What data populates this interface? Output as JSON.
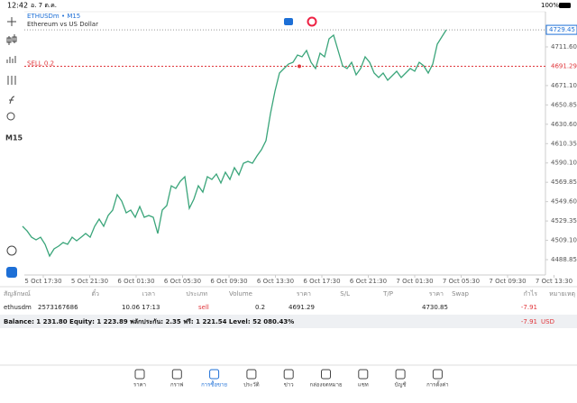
{
  "status_bar": {
    "time": "12:42",
    "date": "อ. 7 ต.ค.",
    "battery": "100%"
  },
  "side_toolbar": {
    "timeframe": "M15"
  },
  "chart_data": {
    "type": "line",
    "title": "ETHUSDm • M15",
    "subtitle": "Ethereum vs US Dollar",
    "color": "#3aa57a",
    "values": [
      4523.8,
      4519.0,
      4512.4,
      4509.6,
      4512.4,
      4504.9,
      4492.6,
      4500.2,
      4503.0,
      4506.8,
      4504.9,
      4512.4,
      4508.6,
      4512.4,
      4516.2,
      4512.4,
      4523.8,
      4531.3,
      4523.8,
      4535.1,
      4540.8,
      4556.8,
      4550.2,
      4537.9,
      4540.8,
      4533.2,
      4544.5,
      4533.2,
      4535.1,
      4533.2,
      4516.2,
      4540.8,
      4545.5,
      4566.2,
      4563.4,
      4571.0,
      4575.7,
      4542.6,
      4552.1,
      4566.2,
      4559.6,
      4575.7,
      4572.9,
      4578.5,
      4569.1,
      4580.4,
      4572.9,
      4585.1,
      4577.6,
      4589.8,
      4591.7,
      4589.8,
      4597.4,
      4604.0,
      4613.4,
      4641.8,
      4665.3,
      4684.2,
      4688.9,
      4693.7,
      4695.5,
      4703.1,
      4701.2,
      4707.8,
      4695.5,
      4688.9,
      4705.0,
      4701.2,
      4720.1,
      4723.9,
      4707.8,
      4691.8,
      4688.9,
      4695.5,
      4682.3,
      4688.9,
      4701.2,
      4695.5,
      4684.2,
      4679.5,
      4684.2,
      4676.7,
      4681.4,
      4686.1,
      4679.5,
      4684.2,
      4688.9,
      4686.1,
      4695.5,
      4691.8,
      4684.2,
      4693.7,
      4714.4,
      4722.0,
      4729.45
    ],
    "x_labels": [
      "5 Oct 17:30",
      "5 Oct 21:30",
      "6 Oct 01:30",
      "6 Oct 05:30",
      "6 Oct 09:30",
      "6 Oct 13:30",
      "6 Oct 17:30",
      "6 Oct 21:30",
      "7 Oct 01:30",
      "7 Oct 05:30",
      "7 Oct 09:30",
      "7 Oct 13:30"
    ],
    "ylim": [
      4476.6,
      4748.4
    ],
    "yticks": [
      4488.85,
      {
        "value": 4509.1,
        "label": "4509.10"
      },
      4529.35,
      {
        "value": 4549.6,
        "label": "4549.60"
      },
      4569.85,
      {
        "value": 4590.1,
        "label": "4590.10"
      },
      4610.35,
      {
        "value": 4630.6,
        "label": "4630.60"
      },
      4650.85,
      {
        "value": 4671.1,
        "label": "4671.10"
      },
      {
        "value": 4711.6,
        "label": "4711.60"
      }
    ],
    "current_price": 4729.45,
    "sell_label": "SELL 0.2",
    "sell_price": 4691.29
  },
  "table": {
    "headers": [
      "สัญลักษณ์",
      "ตั๋ว",
      "เวลา",
      "ประเภท",
      "Volume",
      "ราคา",
      "S/L",
      "T/P",
      "ราคา",
      "Swap",
      "กำไร",
      "หมายเหตุ"
    ],
    "row": {
      "symbol": "ethusdm",
      "ticket": 2573167686,
      "time": "10.06 17:13",
      "type": "sell",
      "volume": 0.2,
      "price_open": 4691.29,
      "price_current": 4730.85,
      "profit": -7.91
    }
  },
  "balance": {
    "text": "Balance: 1 231.80 Equity: 1 223.89 พลักประกัน: 2.35 ฟรี: 1 221.54 Level: 52 080.43%",
    "profit": -7.91,
    "currency": "USD"
  },
  "nav": [
    "ราคา",
    "กราฟ",
    "การซื้อขาย",
    "ประวัติ",
    "ข่าว",
    "กล่องจดหมาย",
    "แชท",
    "บัญชี",
    "การตั้งค่า"
  ]
}
